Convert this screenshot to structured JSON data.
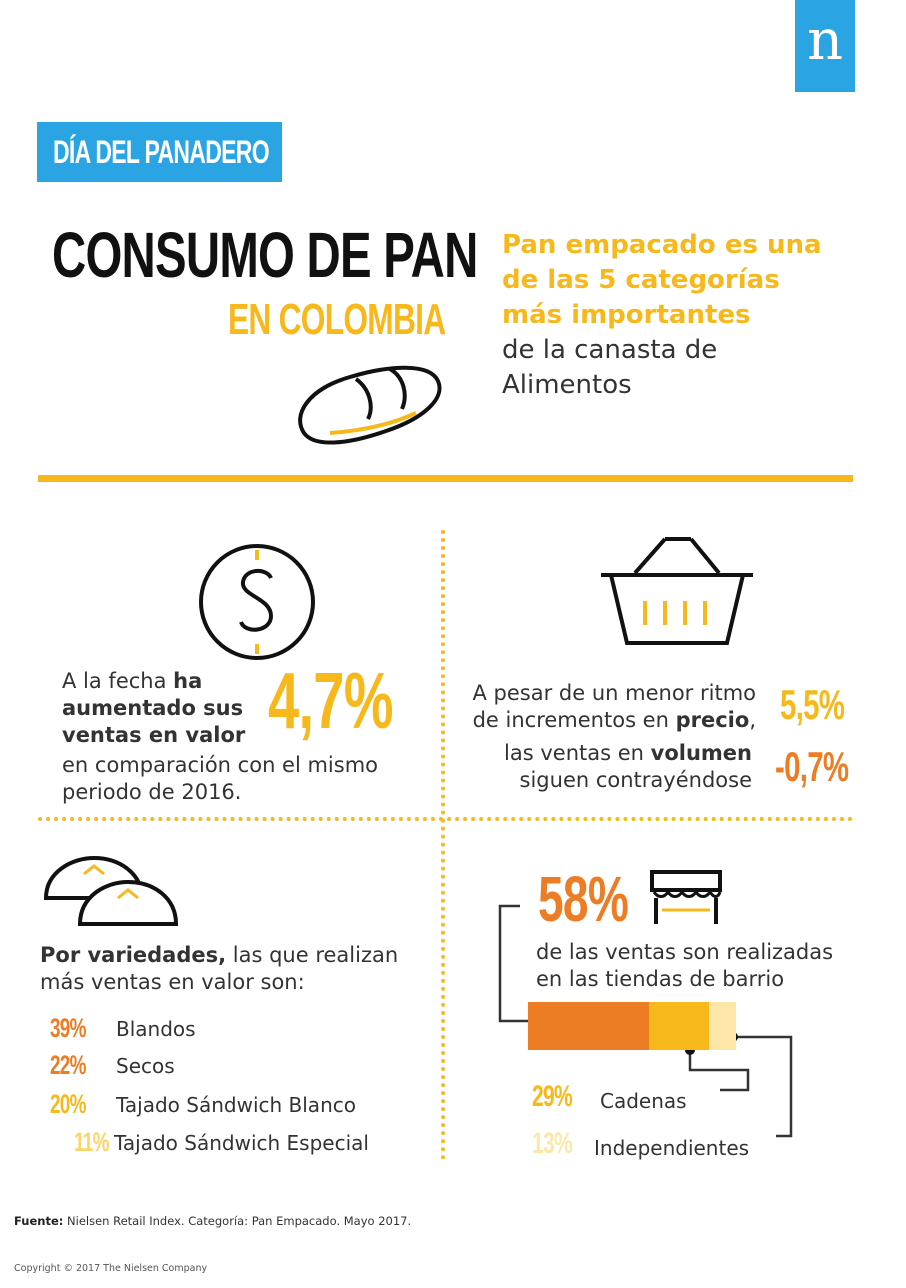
{
  "logo": {
    "letter": "n"
  },
  "header": {
    "tag": "DÍA DEL PANADERO",
    "title": "CONSUMO DE PAN",
    "subtitle": "EN COLOMBIA"
  },
  "intro": {
    "highlight": "Pan empacado es una de las 5 categorías más importantes",
    "rest": "de la canasta de Alimentos"
  },
  "value_growth": {
    "t1": "A la fecha ",
    "t1_bold": "ha aumentado sus ventas en valor",
    "pct": "4,7%",
    "t2": "en comparación con el mismo periodo de 2016."
  },
  "price_volume": {
    "line1_a": "A pesar de un menor ritmo de incrementos en ",
    "line1_bold": "precio",
    "line1_end": ",",
    "pct1": "5,5%",
    "line2_a": "las ventas en ",
    "line2_bold": "volumen",
    "line2_b": " siguen contrayéndose",
    "pct2": "-0,7%"
  },
  "varieties": {
    "intro_bold": "Por variedades,",
    "intro_rest": " las que realizan más ventas en valor son:",
    "items": [
      {
        "pct": "39%",
        "label": "Blandos",
        "color": "#ec7d25"
      },
      {
        "pct": "22%",
        "label": "Secos",
        "color": "#ec7d25"
      },
      {
        "pct": "20%",
        "label": "Tajado Sándwich Blanco",
        "color": "#f7b81c"
      },
      {
        "pct": "11%",
        "label": "Tajado Sándwich Especial",
        "color": "#fcd568"
      }
    ]
  },
  "channels": {
    "pct": "58%",
    "text": "de las ventas son realizadas en las tiendas de barrio",
    "bar_shares": [
      0.58,
      0.29,
      0.13
    ],
    "chains": {
      "pct": "29%",
      "label": "Cadenas"
    },
    "independents": {
      "pct": "13%",
      "label": "Independientes"
    }
  },
  "footer": {
    "source_label": "Fuente:",
    "source_text": " Nielsen Retail Index. Categoría: Pan Empacado. Mayo 2017.",
    "copyright": "Copyright © 2017 The Nielsen Company"
  },
  "colors": {
    "blue": "#2aa4e3",
    "yellow": "#f7b81c",
    "orange": "#ec7d25",
    "pale": "#fde7a8"
  }
}
